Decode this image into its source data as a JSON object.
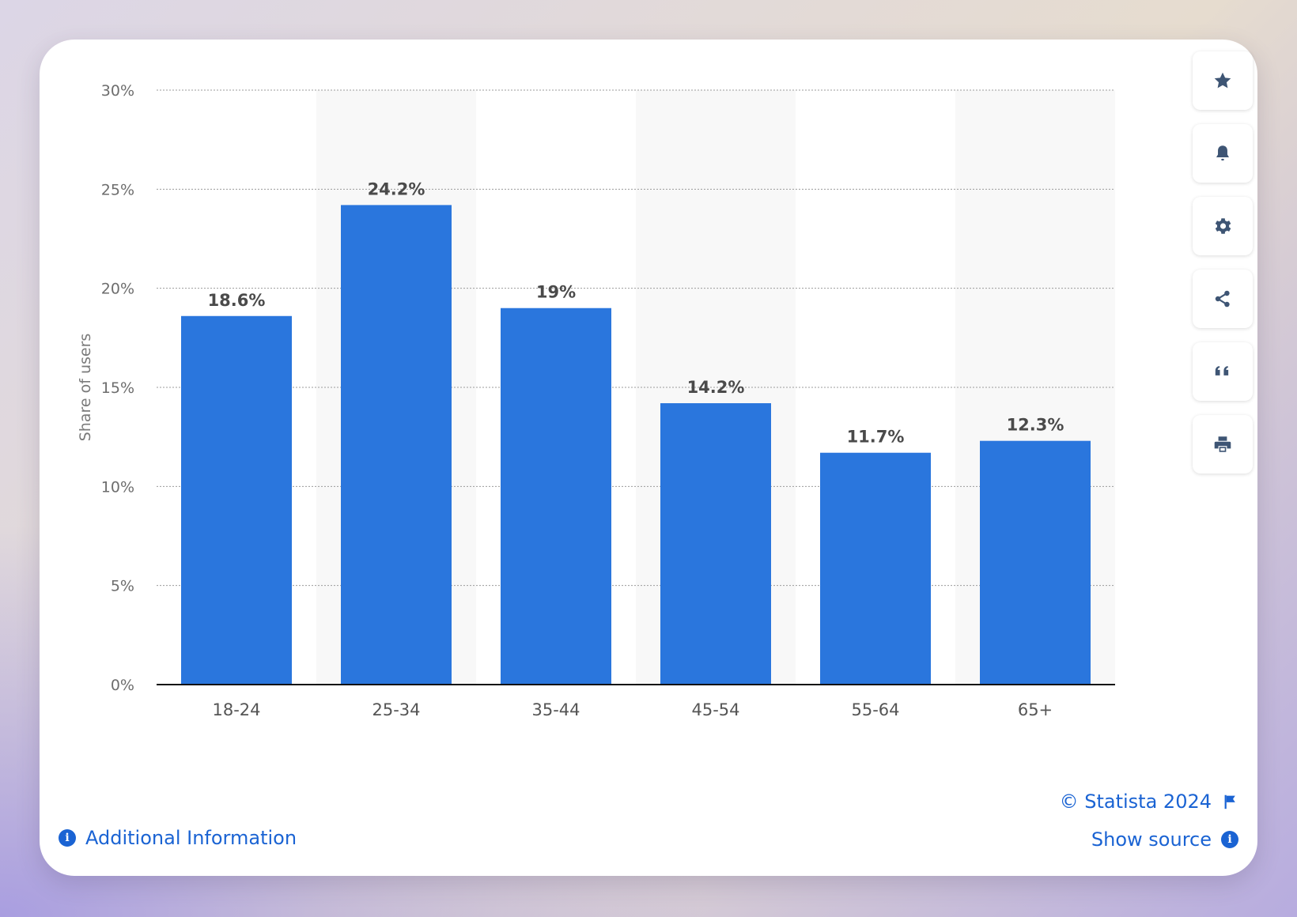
{
  "chart_data": {
    "type": "bar",
    "categories": [
      "18-24",
      "25-34",
      "35-44",
      "45-54",
      "55-64",
      "65+"
    ],
    "values": [
      18.6,
      24.2,
      19,
      14.2,
      11.7,
      12.3
    ],
    "value_labels": [
      "18.6%",
      "24.2%",
      "19%",
      "14.2%",
      "11.7%",
      "12.3%"
    ],
    "ylabel": "Share of users",
    "yticks": [
      "0%",
      "5%",
      "10%",
      "15%",
      "20%",
      "25%",
      "30%"
    ],
    "ylim": [
      0,
      30
    ],
    "grid": true,
    "bar_color": "#2a76dd"
  },
  "toolbar": {
    "icons": [
      "star-icon",
      "bell-icon",
      "gear-icon",
      "share-icon",
      "quote-icon",
      "print-icon"
    ]
  },
  "footer": {
    "additional_info": "Additional Information",
    "copyright": "© Statista 2024",
    "show_source": "Show source",
    "info_glyph": "i"
  },
  "colors": {
    "accent": "#1a63d3",
    "icon": "#3e5574"
  }
}
